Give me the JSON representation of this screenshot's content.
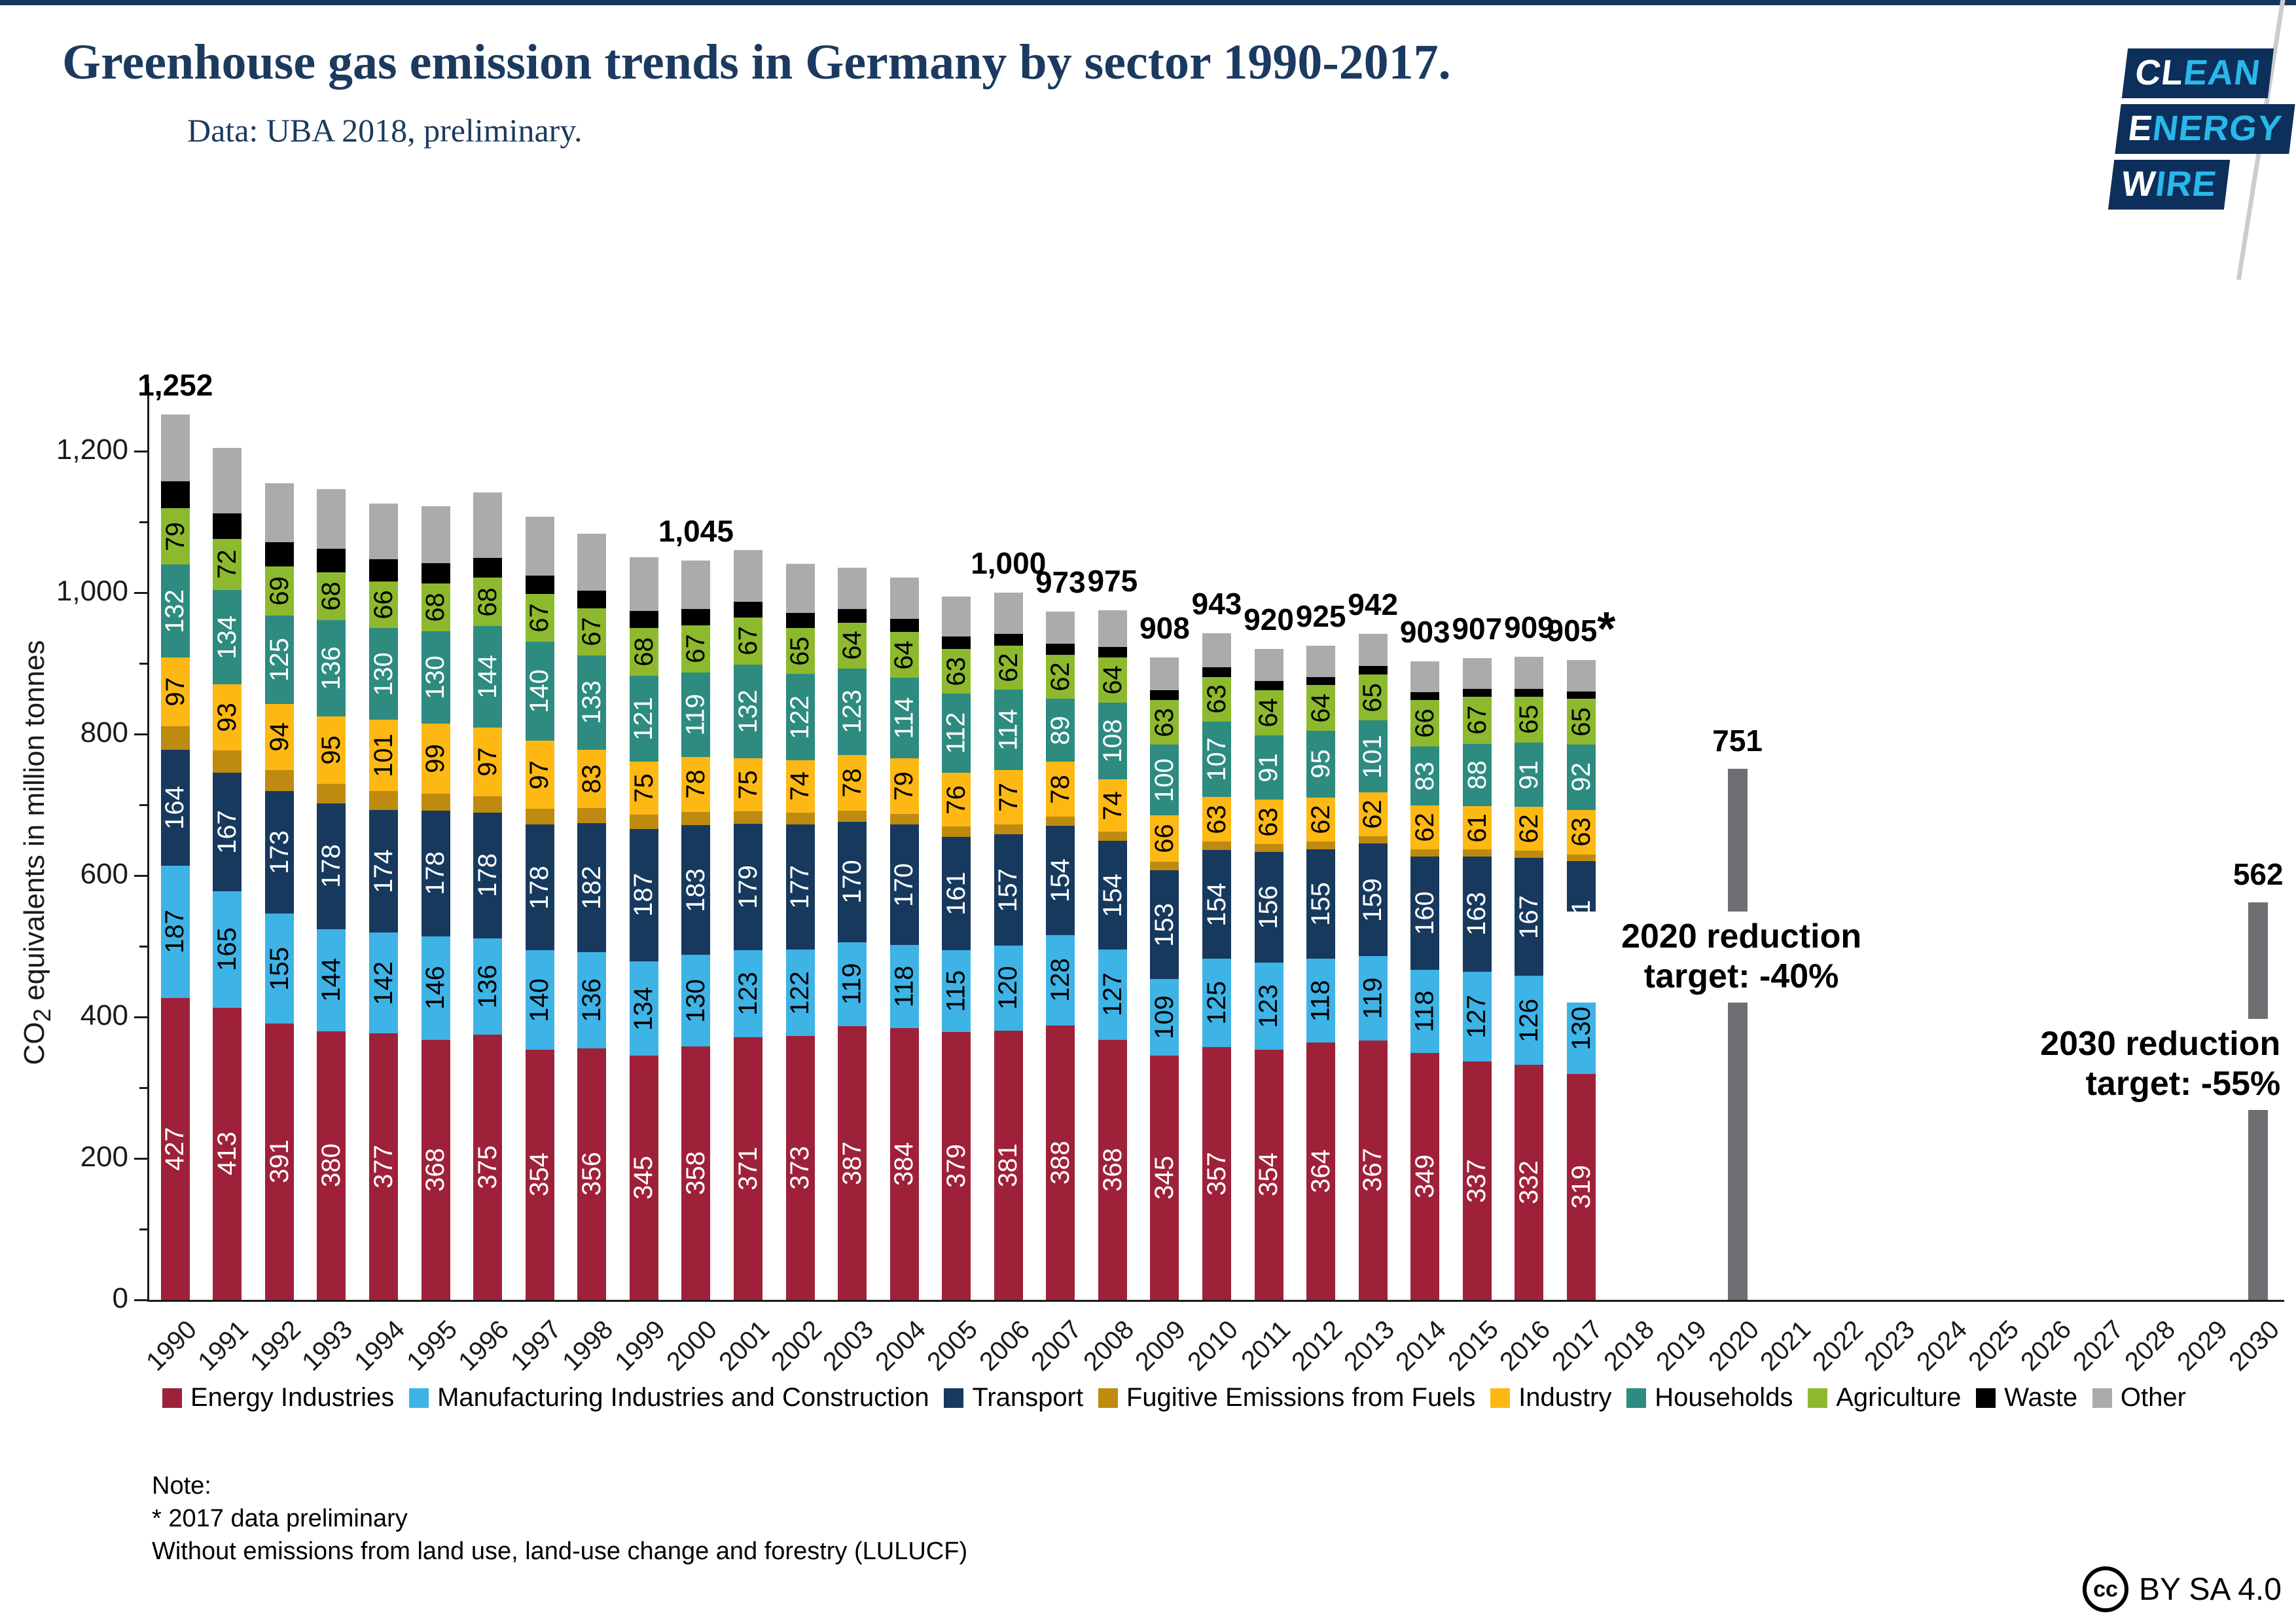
{
  "header": {
    "title": "Greenhouse gas emission trends in Germany by sector 1990-2017.",
    "subtitle": "Data: UBA 2018, preliminary.",
    "logo_lines": [
      {
        "white": "CL",
        "cyan": "EAN"
      },
      {
        "white": "E",
        "cyan": "NERGY"
      },
      {
        "white": "W",
        "cyan": "IRE"
      }
    ]
  },
  "chart_data": {
    "type": "bar",
    "stacked": true,
    "title": "Greenhouse gas emission trends in Germany by sector 1990-2017",
    "ylabel": "CO2 equivalents in million tonnes",
    "xlabel": "",
    "ylim": [
      0,
      1290
    ],
    "grid": false,
    "legend_position": "bottom",
    "ytick_values": [
      0,
      200,
      400,
      600,
      800,
      1000,
      1200
    ],
    "ytick_labels": [
      "0",
      "200",
      "400",
      "600",
      "800",
      "1,000",
      "1,200"
    ],
    "categories": [
      "1990",
      "1991",
      "1992",
      "1993",
      "1994",
      "1995",
      "1996",
      "1997",
      "1998",
      "1999",
      "2000",
      "2001",
      "2002",
      "2003",
      "2004",
      "2005",
      "2006",
      "2007",
      "2008",
      "2009",
      "2010",
      "2011",
      "2012",
      "2013",
      "2014",
      "2015",
      "2016",
      "2017"
    ],
    "xaxis_years": [
      "1990",
      "1991",
      "1992",
      "1993",
      "1994",
      "1995",
      "1996",
      "1997",
      "1998",
      "1999",
      "2000",
      "2001",
      "2002",
      "2003",
      "2004",
      "2005",
      "2006",
      "2007",
      "2008",
      "2009",
      "2010",
      "2011",
      "2012",
      "2013",
      "2014",
      "2015",
      "2016",
      "2017",
      "2018",
      "2019",
      "2020",
      "2021",
      "2022",
      "2023",
      "2024",
      "2025",
      "2026",
      "2027",
      "2028",
      "2029",
      "2030"
    ],
    "series": [
      {
        "name": "Energy Industries",
        "color": "#9e2139",
        "show_labels": true,
        "label_color": "#ffffff",
        "values": [
          427,
          413,
          391,
          380,
          377,
          368,
          375,
          354,
          356,
          345,
          358,
          371,
          373,
          387,
          384,
          379,
          381,
          388,
          368,
          345,
          357,
          354,
          364,
          367,
          349,
          337,
          332,
          319
        ]
      },
      {
        "name": "Manufacturing Industries and Construction",
        "color": "#3eb3e6",
        "show_labels": true,
        "label_color": "#000000",
        "values": [
          187,
          165,
          155,
          144,
          142,
          146,
          136,
          140,
          136,
          134,
          130,
          123,
          122,
          119,
          118,
          115,
          120,
          128,
          127,
          109,
          125,
          123,
          118,
          119,
          118,
          127,
          126,
          130
        ]
      },
      {
        "name": "Transport",
        "color": "#17395e",
        "show_labels": true,
        "label_color": "#ffffff",
        "values": [
          164,
          167,
          173,
          178,
          174,
          178,
          178,
          178,
          182,
          187,
          183,
          179,
          177,
          170,
          170,
          161,
          157,
          154,
          154,
          153,
          154,
          156,
          155,
          159,
          160,
          163,
          167,
          171
        ]
      },
      {
        "name": "Fugitive Emissions from Fuels",
        "color": "#be8a10",
        "show_labels": false,
        "estimated": true,
        "values": [
          33,
          32,
          30,
          28,
          26,
          24,
          23,
          22,
          21,
          20,
          19,
          18,
          17,
          16,
          15,
          14,
          14,
          13,
          13,
          12,
          12,
          11,
          11,
          11,
          10,
          10,
          10,
          10
        ]
      },
      {
        "name": "Industry",
        "color": "#fdb813",
        "show_labels": true,
        "label_color": "#000000",
        "values": [
          97,
          93,
          94,
          95,
          101,
          99,
          97,
          97,
          83,
          75,
          78,
          75,
          74,
          78,
          79,
          76,
          77,
          78,
          74,
          66,
          63,
          63,
          62,
          62,
          62,
          61,
          62,
          63
        ]
      },
      {
        "name": "Households",
        "color": "#2d8b80",
        "show_labels": true,
        "label_color": "#ffffff",
        "values": [
          132,
          134,
          125,
          136,
          130,
          130,
          144,
          140,
          133,
          121,
          119,
          132,
          122,
          123,
          114,
          112,
          114,
          89,
          108,
          100,
          107,
          91,
          95,
          101,
          83,
          88,
          91,
          92
        ]
      },
      {
        "name": "Agriculture",
        "color": "#8db92e",
        "show_labels": true,
        "label_color": "#000000",
        "values": [
          79,
          72,
          69,
          68,
          66,
          68,
          68,
          67,
          67,
          68,
          67,
          67,
          65,
          64,
          64,
          63,
          62,
          62,
          64,
          63,
          63,
          64,
          64,
          65,
          66,
          67,
          65,
          65
        ]
      },
      {
        "name": "Waste",
        "color": "#000000",
        "show_labels": false,
        "estimated": true,
        "values": [
          38,
          36,
          34,
          33,
          31,
          29,
          28,
          26,
          25,
          24,
          23,
          22,
          21,
          20,
          19,
          18,
          17,
          16,
          15,
          14,
          13,
          13,
          12,
          12,
          11,
          11,
          11,
          10
        ]
      },
      {
        "name": "Other",
        "color": "#ababab",
        "show_labels": false,
        "estimated": true,
        "values": [
          95,
          93,
          84,
          84,
          79,
          80,
          93,
          83,
          80,
          76,
          68,
          73,
          70,
          58,
          58,
          56,
          58,
          45,
          52,
          46,
          49,
          45,
          44,
          46,
          44,
          43,
          45,
          45
        ]
      }
    ],
    "totals": [
      {
        "year": 1990,
        "label": "1,252"
      },
      {
        "year": 2000,
        "label": "1,045"
      },
      {
        "year": 2006,
        "label": "1,000"
      },
      {
        "year": 2007,
        "label": "973"
      },
      {
        "year": 2008,
        "label": "975"
      },
      {
        "year": 2009,
        "label": "908"
      },
      {
        "year": 2010,
        "label": "943"
      },
      {
        "year": 2011,
        "label": "920"
      },
      {
        "year": 2012,
        "label": "925"
      },
      {
        "year": 2013,
        "label": "942"
      },
      {
        "year": 2014,
        "label": "903"
      },
      {
        "year": 2015,
        "label": "907"
      },
      {
        "year": 2016,
        "label": "909"
      },
      {
        "year": 2017,
        "label": "905",
        "asterisk": true
      }
    ],
    "target_bars": [
      {
        "year": 2020,
        "value": 751,
        "label": "751",
        "color": "#6e6f72",
        "lines": [
          "2020 reduction",
          "target: -40%"
        ]
      },
      {
        "year": 2030,
        "value": 562,
        "label": "562",
        "color": "#6e6f72",
        "lines": [
          "2030 reduction",
          "target: -55%"
        ]
      }
    ]
  },
  "note": {
    "line1": "Note:",
    "line2": "* 2017 data preliminary",
    "line3": "Without emissions from land use, land-use change and forestry (LULUCF)"
  },
  "license": {
    "icon": "cc",
    "text": "BY SA 4.0"
  }
}
